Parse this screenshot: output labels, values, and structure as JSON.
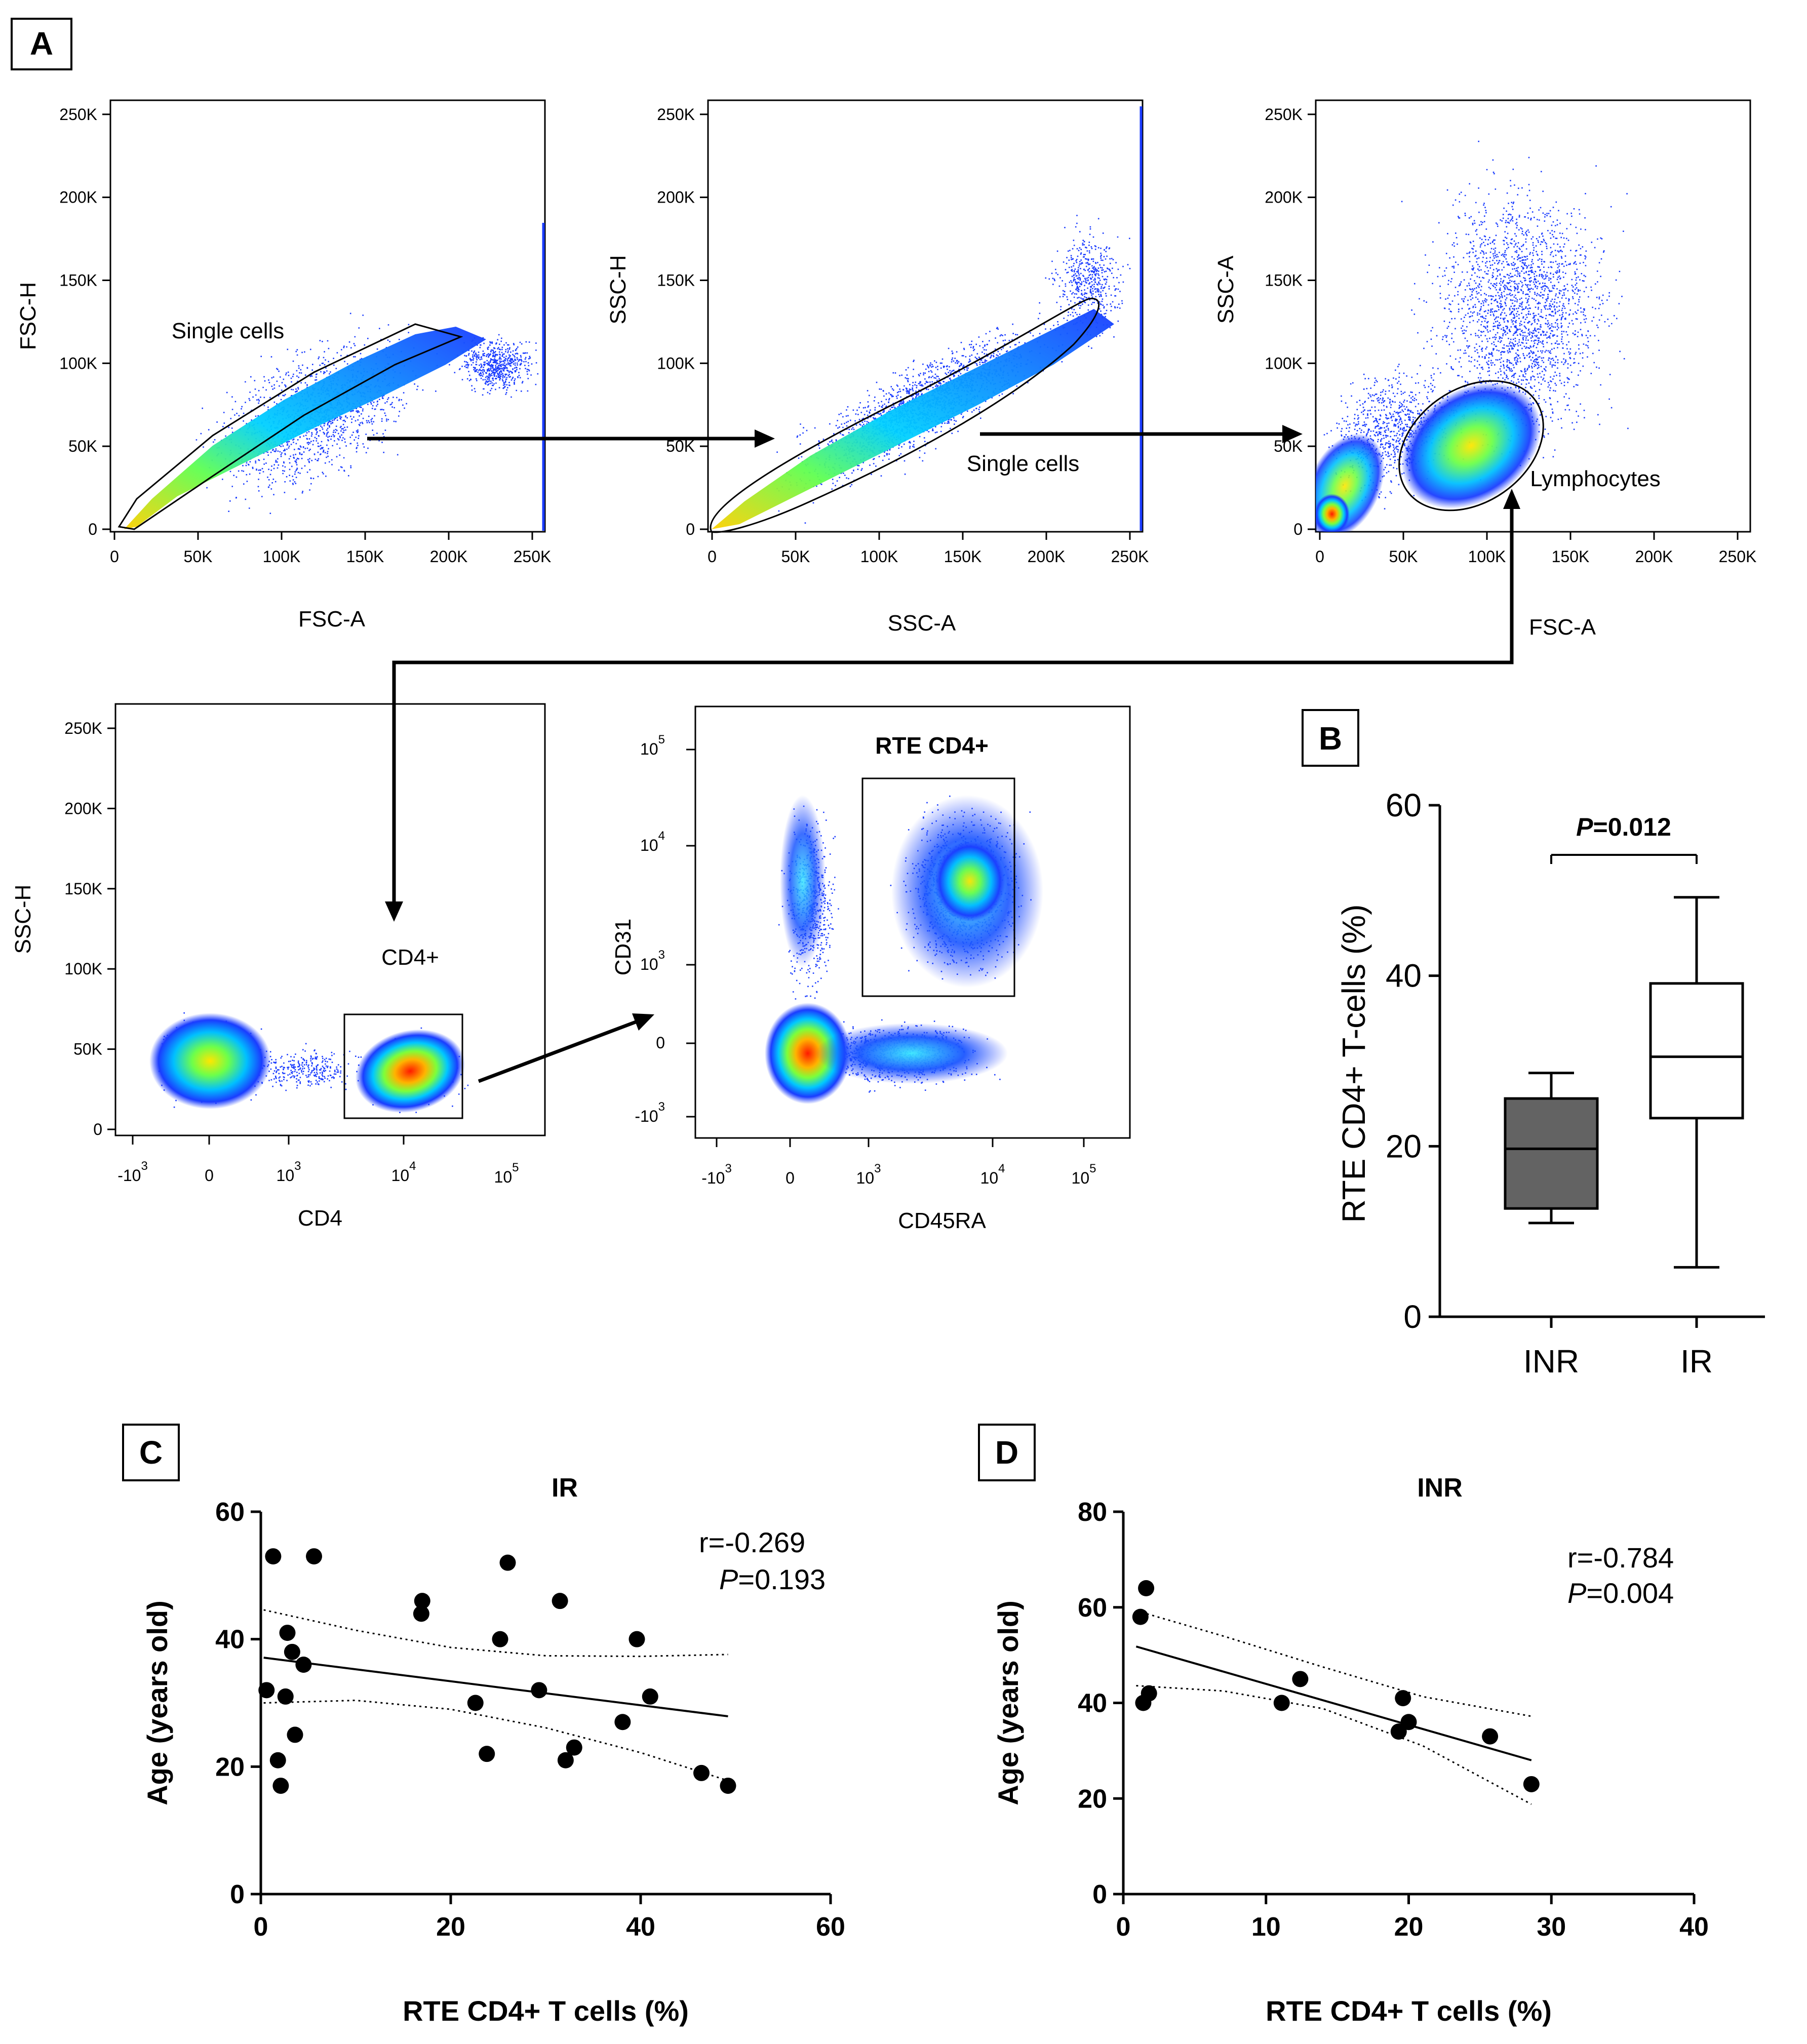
{
  "colors": {
    "ink": "#000000",
    "box_inr": "#636363",
    "box_ir": "#ffffff"
  },
  "panels": {
    "A": {
      "label": "A",
      "plots": [
        {
          "id": "a1",
          "xlabel": "FSC-A",
          "ylabel": "FSC-H",
          "xticks": [
            "0",
            "50K",
            "100K",
            "150K",
            "200K",
            "250K"
          ],
          "yticks": [
            "0",
            "50K",
            "100K",
            "150K",
            "200K",
            "250K"
          ],
          "gate_label": "Single cells"
        },
        {
          "id": "a2",
          "xlabel": "SSC-A",
          "ylabel": "SSC-H",
          "xticks": [
            "0",
            "50K",
            "100K",
            "150K",
            "200K",
            "250K"
          ],
          "yticks": [
            "0",
            "50K",
            "100K",
            "150K",
            "200K",
            "250K"
          ],
          "gate_label": "Single cells"
        },
        {
          "id": "a3",
          "xlabel": "FSC-A",
          "ylabel": "SSC-A",
          "xticks": [
            "0",
            "50K",
            "100K",
            "150K",
            "200K",
            "250K"
          ],
          "yticks": [
            "0",
            "50K",
            "100K",
            "150K",
            "200K",
            "250K"
          ],
          "gate_label": "Lymphocytes"
        },
        {
          "id": "a4",
          "xlabel": "CD4",
          "ylabel": "SSC-H",
          "xticks": [
            "-10",
            "0",
            "10",
            "10"
          ],
          "xtick_exponents": [
            "3",
            "",
            "3",
            "4"
          ],
          "xtick_extra": {
            "base": "10",
            "exp": "5"
          },
          "yticks": [
            "0",
            "50K",
            "100K",
            "150K",
            "200K",
            "250K"
          ],
          "gate_label": "CD4+"
        },
        {
          "id": "a5",
          "xlabel": "CD45RA",
          "ylabel": "CD31",
          "xticks": [
            "-10",
            "0",
            "10",
            "10",
            "10"
          ],
          "xtick_exponents": [
            "3",
            "",
            "3",
            "4",
            "5"
          ],
          "yticks": [
            "-10",
            "0",
            "10",
            "10",
            "10"
          ],
          "ytick_exponents": [
            "3",
            "",
            "3",
            "4",
            "5"
          ],
          "gate_label": "RTE CD4+"
        }
      ]
    },
    "B": {
      "label": "B",
      "annotation_p": "P",
      "annotation_value": "=0.012"
    },
    "C": {
      "label": "C",
      "stat_r": "r=-0.269",
      "stat_p_label": "P",
      "stat_p_value": "=0.193"
    },
    "D": {
      "label": "D",
      "stat_r": "r=-0.784",
      "stat_p_label": "P",
      "stat_p_value": "=0.004"
    }
  },
  "chart_data": [
    {
      "panel": "B",
      "type": "box",
      "ylabel": "RTE CD4+ T-cells (%)",
      "categories": [
        "INR",
        "IR"
      ],
      "ylim": [
        0,
        60
      ],
      "yticks": [
        0,
        20,
        40,
        60
      ],
      "boxes": [
        {
          "name": "INR",
          "min": 11,
          "q1": 12.7,
          "median": 19.7,
          "q3": 25.6,
          "max": 28.6
        },
        {
          "name": "IR",
          "min": 5.8,
          "q1": 23.3,
          "median": 30.5,
          "q3": 39.1,
          "max": 49.2
        }
      ]
    },
    {
      "panel": "C",
      "type": "scatter",
      "title": "IR",
      "xlabel": "RTE CD4+ T cells (%)",
      "ylabel": "Age (years old)",
      "xlim": [
        0,
        60
      ],
      "ylim": [
        0,
        60
      ],
      "xticks": [
        0,
        20,
        40,
        60
      ],
      "yticks": [
        0,
        20,
        40,
        60
      ],
      "x": [
        0.6,
        1.3,
        1.8,
        2.1,
        2.6,
        2.8,
        3.3,
        3.6,
        4.5,
        5.6,
        16.9,
        17.0,
        22.6,
        23.8,
        25.2,
        26.0,
        29.3,
        31.5,
        32.1,
        33.0,
        38.1,
        39.6,
        41.0,
        46.4,
        49.2
      ],
      "y": [
        32,
        53,
        21,
        17,
        31,
        41,
        38,
        25,
        36,
        53,
        44,
        46,
        30,
        22,
        40,
        52,
        32,
        46,
        21,
        23,
        27,
        40,
        31,
        19,
        17
      ],
      "fit": {
        "x": [
          0.3,
          49.2
        ],
        "y": [
          37.1,
          27.9
        ]
      },
      "ci_upper": {
        "x": [
          0.3,
          10,
          20,
          30,
          40,
          49.2
        ],
        "y": [
          44.6,
          41.4,
          38.7,
          37.4,
          37.3,
          37.6
        ]
      },
      "ci_lower": {
        "x": [
          0.3,
          10,
          20,
          30,
          40,
          49.2
        ],
        "y": [
          30.0,
          30.4,
          29.0,
          26.1,
          22.2,
          17.8
        ]
      }
    },
    {
      "panel": "D",
      "type": "scatter",
      "title": "INR",
      "xlabel": "RTE CD4+ T cells (%)",
      "ylabel": "Age (years old)",
      "xlim": [
        0,
        40
      ],
      "ylim": [
        0,
        80
      ],
      "xticks": [
        0,
        10,
        20,
        30,
        40
      ],
      "yticks": [
        0,
        20,
        40,
        60,
        80
      ],
      "x": [
        1.2,
        1.4,
        1.6,
        1.8,
        11.1,
        12.4,
        19.3,
        19.6,
        20.0,
        25.7,
        28.6
      ],
      "y": [
        58,
        40,
        64,
        42,
        40,
        45,
        34,
        41,
        36,
        33,
        23
      ],
      "fit": {
        "x": [
          0.9,
          28.6
        ],
        "y": [
          51.8,
          28.0
        ]
      },
      "ci_upper": {
        "x": [
          0.9,
          7,
          14,
          21,
          28.6
        ],
        "y": [
          59.3,
          54.0,
          47.5,
          41.3,
          37.2
        ]
      },
      "ci_lower": {
        "x": [
          0.9,
          7,
          14,
          21,
          28.6
        ],
        "y": [
          43.6,
          42.5,
          38.8,
          31.0,
          18.8
        ]
      }
    }
  ]
}
